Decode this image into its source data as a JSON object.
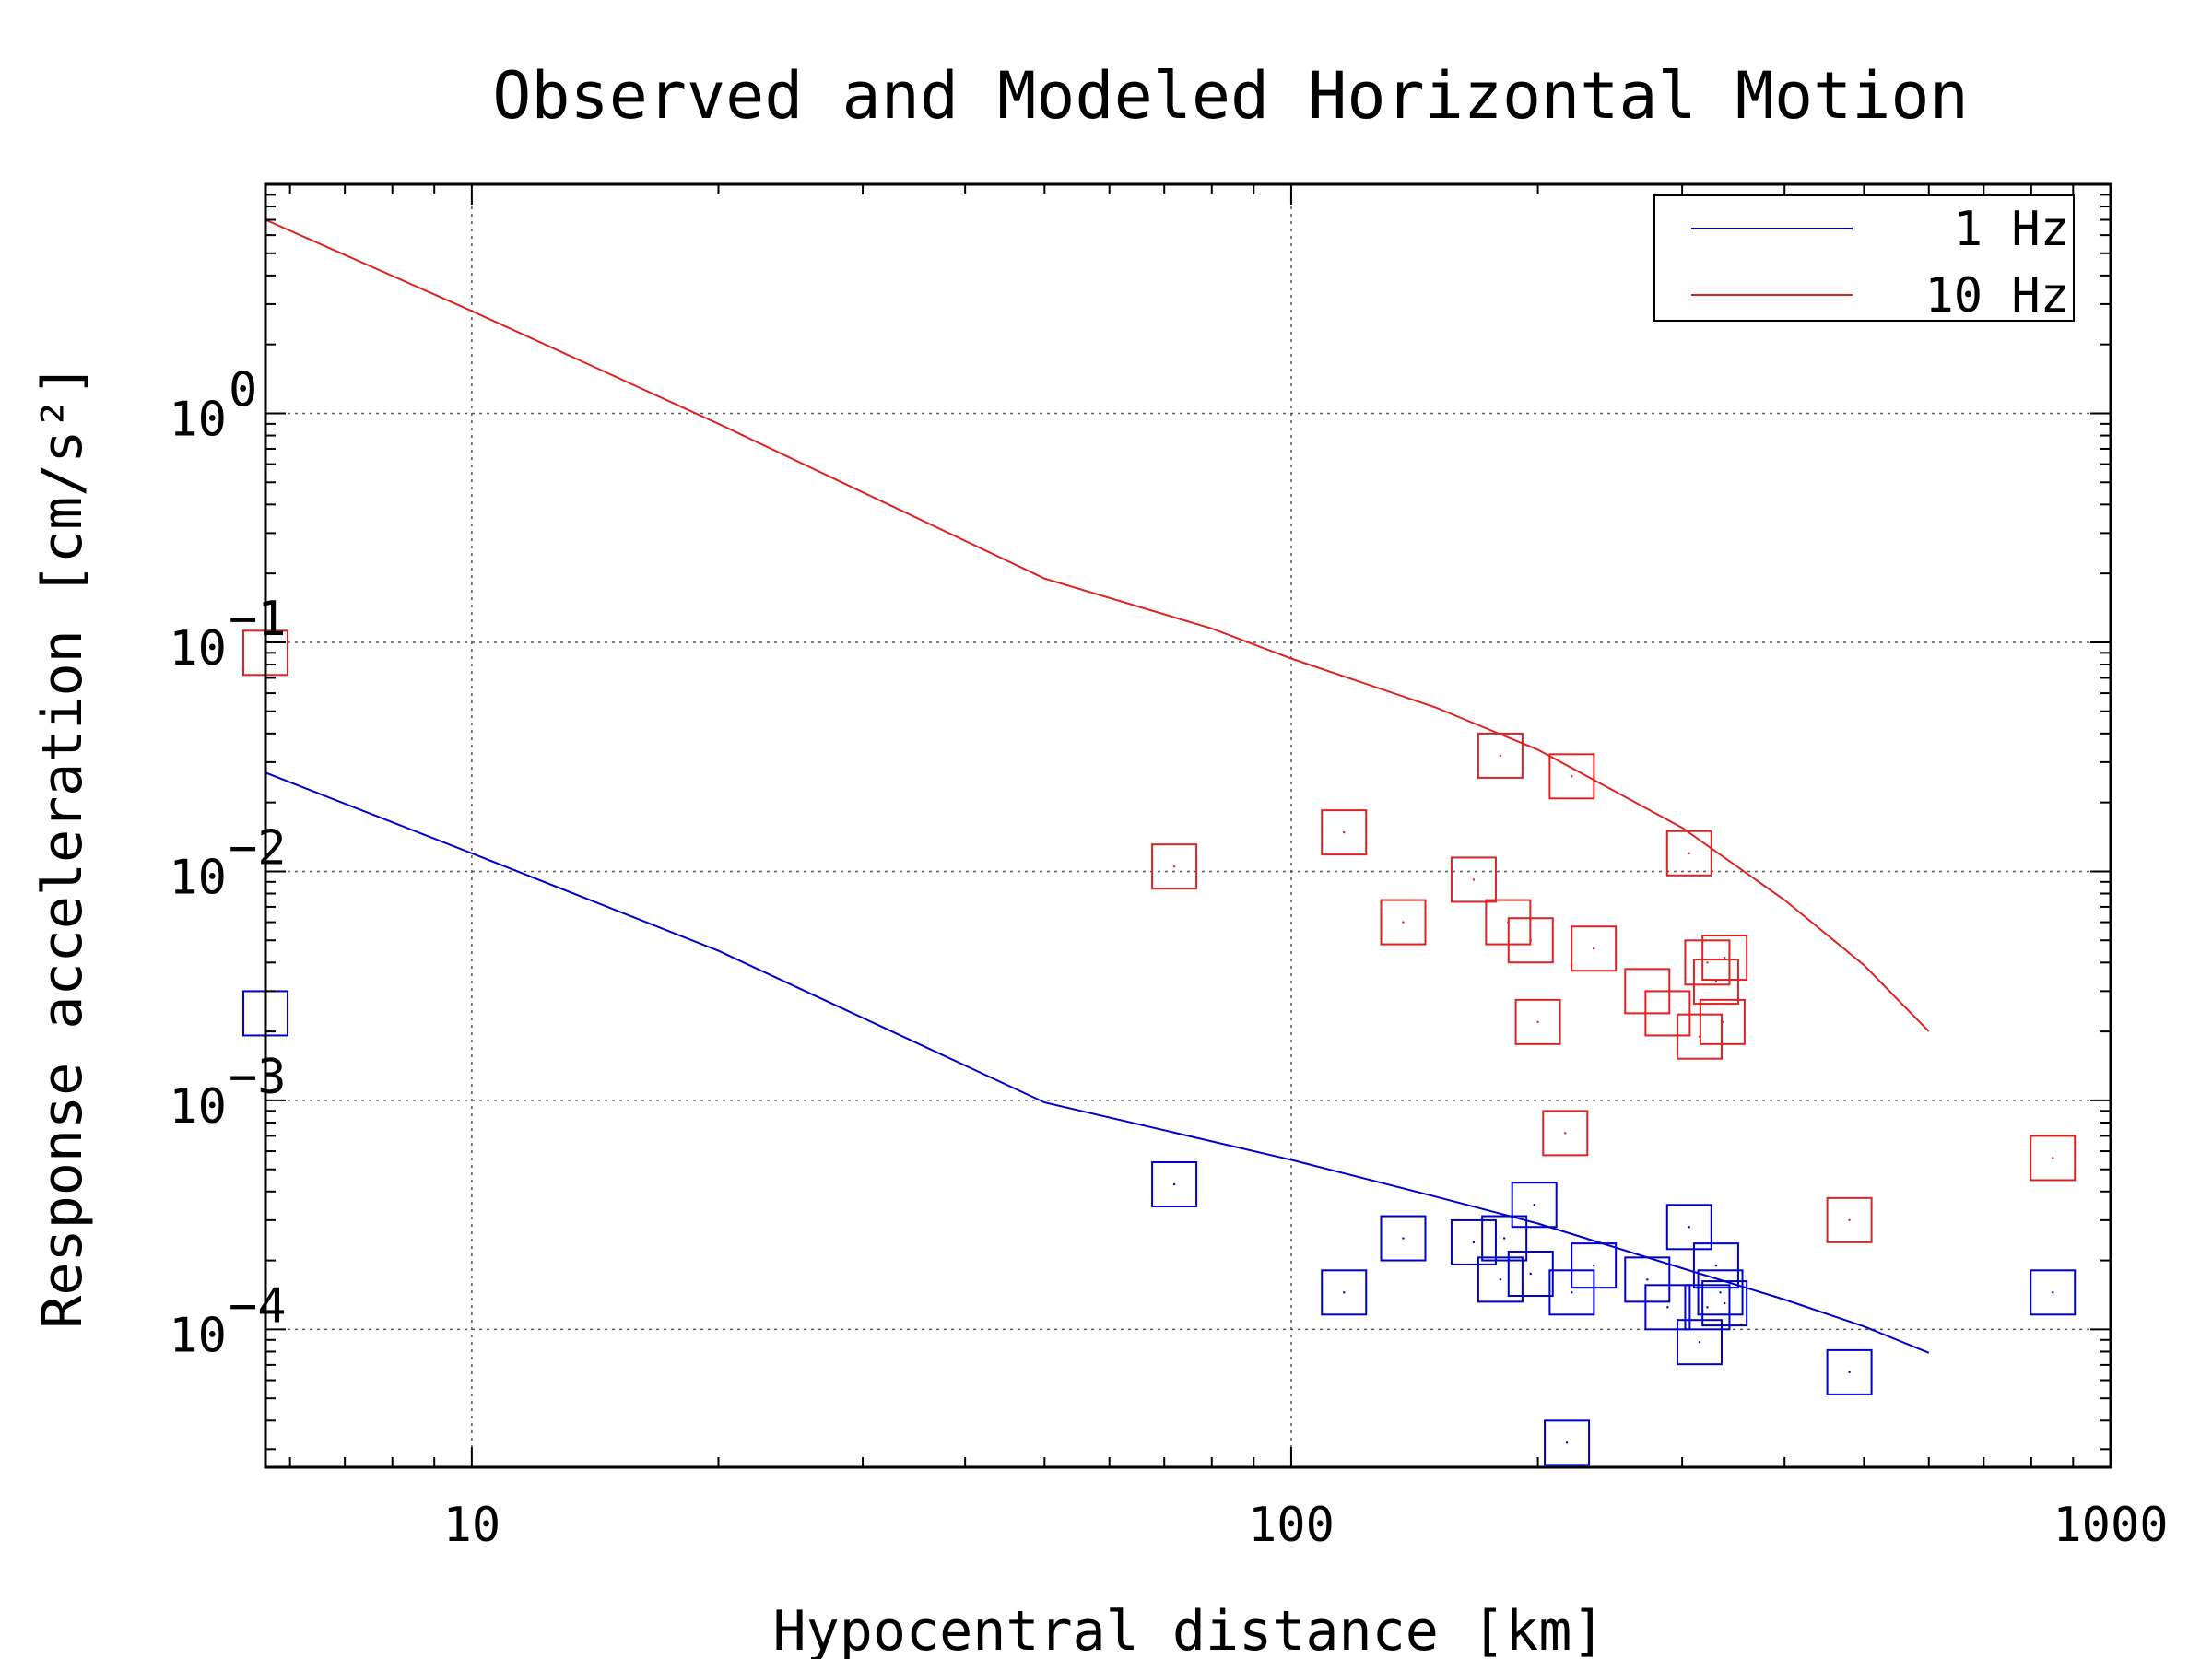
{
  "chart_data": {
    "type": "scatter",
    "title": "Observed and Modeled Horizontal Motion",
    "xlabel": "Hypocentral distance [km]",
    "ylabel": "Response acceleration [cm/s²]",
    "xscale": "log",
    "yscale": "log",
    "xlim": [
      5.6,
      1000
    ],
    "ylim": [
      2.5e-05,
      10
    ],
    "xticks": [
      {
        "value": 10,
        "label": "10"
      },
      {
        "value": 100,
        "label": "100"
      },
      {
        "value": 1000,
        "label": "1000"
      }
    ],
    "yticks": [
      {
        "value": 0.0001,
        "base": "10",
        "exp": "−4"
      },
      {
        "value": 0.001,
        "base": "10",
        "exp": "−3"
      },
      {
        "value": 0.01,
        "base": "10",
        "exp": "−2"
      },
      {
        "value": 0.1,
        "base": "10",
        "exp": "−1"
      },
      {
        "value": 1,
        "base": "10",
        "exp": "0"
      }
    ],
    "grid": true,
    "legend_position": "top-right",
    "series": [
      {
        "name": "1 Hz",
        "color": "#0000cc",
        "line": {
          "x": [
            5.6,
            10,
            20,
            50,
            100,
            150,
            200,
            300,
            400,
            500,
            600
          ],
          "y": [
            0.027,
            0.012,
            0.0045,
            0.00098,
            0.00055,
            0.00038,
            0.00029,
            0.000185,
            0.000135,
            0.000103,
            7.9e-05
          ]
        },
        "points": [
          {
            "x": 5.6,
            "y": 0.0024
          },
          {
            "x": 72,
            "y": 0.00043
          },
          {
            "x": 116,
            "y": 0.000145
          },
          {
            "x": 137,
            "y": 0.00025
          },
          {
            "x": 167,
            "y": 0.00024
          },
          {
            "x": 180,
            "y": 0.000165
          },
          {
            "x": 182,
            "y": 0.00025
          },
          {
            "x": 196,
            "y": 0.000175
          },
          {
            "x": 198,
            "y": 0.00035
          },
          {
            "x": 220,
            "y": 0.000145
          },
          {
            "x": 234,
            "y": 0.00019
          },
          {
            "x": 272,
            "y": 0.000165
          },
          {
            "x": 288,
            "y": 0.000125
          },
          {
            "x": 306,
            "y": 0.00028
          },
          {
            "x": 315,
            "y": 8.8e-05
          },
          {
            "x": 322,
            "y": 0.000125
          },
          {
            "x": 330,
            "y": 0.00019
          },
          {
            "x": 334,
            "y": 0.000145
          },
          {
            "x": 338,
            "y": 0.00013
          },
          {
            "x": 217,
            "y": 3.2e-05
          },
          {
            "x": 480,
            "y": 6.5e-05
          },
          {
            "x": 850,
            "y": 0.000145
          }
        ]
      },
      {
        "name": "10 Hz",
        "color": "#dd2222",
        "line": {
          "x": [
            5.6,
            10,
            20,
            50,
            80,
            100,
            150,
            200,
            300,
            400,
            500,
            600
          ],
          "y": [
            7.0,
            2.8,
            0.9,
            0.19,
            0.115,
            0.085,
            0.052,
            0.034,
            0.0155,
            0.0075,
            0.0039,
            0.002
          ]
        },
        "points": [
          {
            "x": 5.6,
            "y": 0.09
          },
          {
            "x": 72,
            "y": 0.0105
          },
          {
            "x": 116,
            "y": 0.0148
          },
          {
            "x": 137,
            "y": 0.006
          },
          {
            "x": 167,
            "y": 0.0092
          },
          {
            "x": 180,
            "y": 0.032
          },
          {
            "x": 184,
            "y": 0.006
          },
          {
            "x": 196,
            "y": 0.005
          },
          {
            "x": 200,
            "y": 0.0022
          },
          {
            "x": 220,
            "y": 0.026
          },
          {
            "x": 234,
            "y": 0.0046
          },
          {
            "x": 272,
            "y": 0.003
          },
          {
            "x": 288,
            "y": 0.0024
          },
          {
            "x": 306,
            "y": 0.012
          },
          {
            "x": 315,
            "y": 0.0019
          },
          {
            "x": 322,
            "y": 0.004
          },
          {
            "x": 330,
            "y": 0.0033
          },
          {
            "x": 338,
            "y": 0.0042
          },
          {
            "x": 336,
            "y": 0.0022
          },
          {
            "x": 216,
            "y": 0.00072
          },
          {
            "x": 480,
            "y": 0.0003
          },
          {
            "x": 850,
            "y": 0.00056
          }
        ]
      }
    ]
  }
}
